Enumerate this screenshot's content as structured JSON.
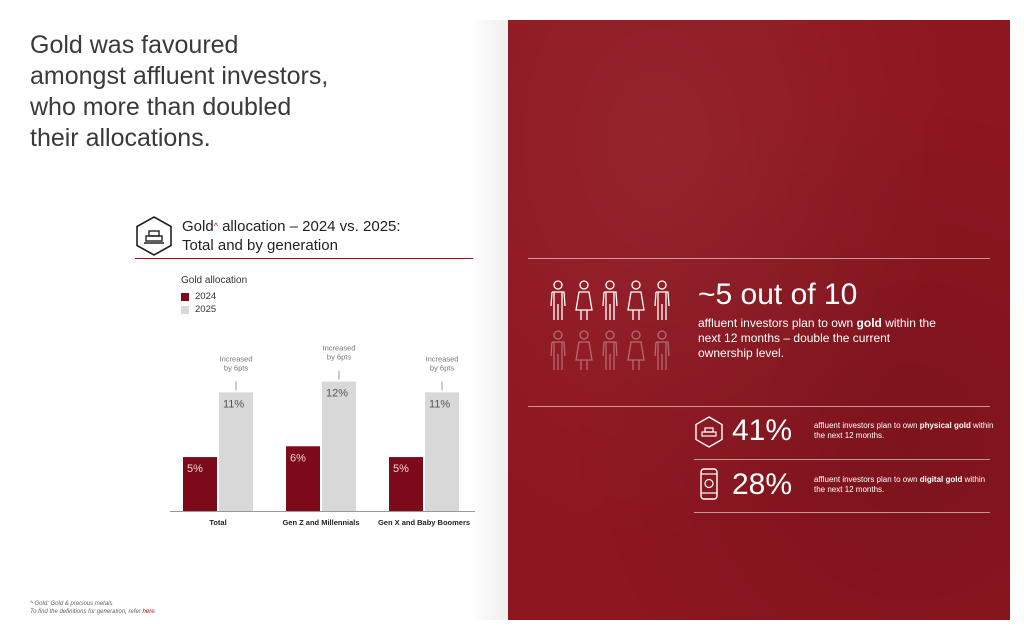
{
  "headline": "Gold was favoured\namongst affluent investors,\nwho more than doubled\ntheir allocations.",
  "chart_header": {
    "title_pre": "Gold",
    "title_sup": "^",
    "title_post": " allocation – 2024 vs. 2025:",
    "title_line2": "Total and by generation",
    "icon": "gold-bars-hexagon-icon"
  },
  "legend": {
    "title": "Gold allocation",
    "items": [
      {
        "label": "2024",
        "color": "#7d0a1a"
      },
      {
        "label": "2025",
        "color": "#d8d8d8"
      }
    ]
  },
  "chart_data": {
    "type": "bar",
    "categories": [
      "Total",
      "Gen Z and Millennials",
      "Gen X and Baby Boomers"
    ],
    "series": [
      {
        "name": "2024",
        "values": [
          5,
          6,
          5
        ],
        "labels": [
          "5%",
          "6%",
          "5%"
        ],
        "color": "#7d0a1a"
      },
      {
        "name": "2025",
        "values": [
          11,
          12,
          11
        ],
        "labels": [
          "11%",
          "12%",
          "11%"
        ],
        "color": "#d8d8d8"
      }
    ],
    "annotations": [
      [
        "Increased",
        "by 6pts"
      ],
      [
        "Increased",
        "by 6pts"
      ],
      [
        "Increased",
        "by 6pts"
      ]
    ],
    "ylim": [
      0,
      14
    ]
  },
  "footnote": {
    "line1": "^  Gold: Gold & precious metals",
    "line2": "To find the definitions for generation, refer ",
    "link": "here",
    "line2_end": "."
  },
  "panel": {
    "background": "#8e1620",
    "people": {
      "total": 10,
      "highlighted": 5
    },
    "big_stat": "~5 out of 10",
    "big_desc_pre": "affluent investors plan to own ",
    "big_desc_bold": "gold",
    "big_desc_post": " within the next 12 months – double the current ownership level.",
    "stats": [
      {
        "icon": "gold-bars-hexagon-icon",
        "value": "41%",
        "pre": "affluent investors plan to own ",
        "bold": "physical gold",
        "post": " within the next 12 months."
      },
      {
        "icon": "mobile-phone-gold-icon",
        "value": "28%",
        "pre": "affluent investors plan to own ",
        "bold": "digital gold",
        "post": " within the next 12 months."
      }
    ]
  }
}
